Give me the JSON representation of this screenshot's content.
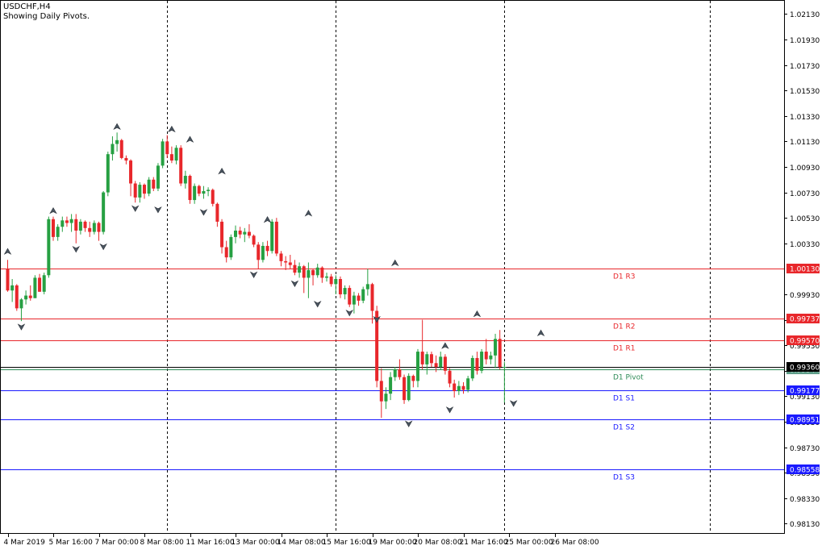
{
  "header": {
    "symbol_label": "USDCHF,H4",
    "indicator_label": "Showing Daily Pivots."
  },
  "colors": {
    "bull": "#26a042",
    "bear": "#e8272b",
    "resistance": "#e8272b",
    "support": "#1a1aff",
    "pivot": "#2e8b57",
    "grid": "#000000"
  },
  "chart_data": {
    "type": "candlestick",
    "title": "USDCHF,H4",
    "subtitle": "Showing Daily Pivots.",
    "xlabel": "",
    "ylabel": "",
    "ylim": [
      0.9805,
      1.0224
    ],
    "y_ticks": [
      "1.02130",
      "1.01930",
      "1.01730",
      "1.01530",
      "1.01330",
      "1.01130",
      "1.00930",
      "1.00730",
      "1.00530",
      "1.00330",
      "0.99930",
      "0.99730",
      "0.99530",
      "0.99330",
      "0.99130",
      "0.98930",
      "0.98730",
      "0.98530",
      "0.98330",
      "0.98130"
    ],
    "x_labels": [
      {
        "label": "4 Mar 2019",
        "index": 0
      },
      {
        "label": "5 Mar 16:00",
        "index": 10
      },
      {
        "label": "7 Mar 00:00",
        "index": 20
      },
      {
        "label": "8 Mar 08:00",
        "index": 30
      },
      {
        "label": "11 Mar 16:00",
        "index": 40
      },
      {
        "label": "13 Mar 00:00",
        "index": 50
      },
      {
        "label": "14 Mar 08:00",
        "index": 60
      },
      {
        "label": "15 Mar 16:00",
        "index": 70
      },
      {
        "label": "19 Mar 00:00",
        "index": 80
      },
      {
        "label": "20 Mar 08:00",
        "index": 90
      },
      {
        "label": "21 Mar 16:00",
        "index": 100
      },
      {
        "label": "25 Mar 00:00",
        "index": 110
      },
      {
        "label": "26 Mar 08:00",
        "index": 120
      }
    ],
    "day_separators": [
      35,
      72,
      109,
      154
    ],
    "pivot_levels": [
      {
        "name": "D1 R3",
        "value": 1.0013,
        "price_label": "1.00130",
        "kind": "resistance"
      },
      {
        "name": "D1 R2",
        "value": 0.99737,
        "price_label": "0.99737",
        "kind": "resistance"
      },
      {
        "name": "D1 R1",
        "value": 0.9957,
        "price_label": "0.99570",
        "kind": "resistance"
      },
      {
        "name": "D1 Pivot",
        "value": 0.99344,
        "price_label": "0.99344",
        "kind": "pivot"
      },
      {
        "name": "D1 S1",
        "value": 0.99177,
        "price_label": "0.99177",
        "kind": "support"
      },
      {
        "name": "D1 S2",
        "value": 0.98951,
        "price_label": "0.98951",
        "kind": "support"
      },
      {
        "name": "D1 S3",
        "value": 0.98558,
        "price_label": "0.98558",
        "kind": "support"
      }
    ],
    "current_price": {
      "value": 0.9936,
      "price_label": "0.99360"
    },
    "candles": [
      {
        "o": 1.0013,
        "h": 1.002,
        "l": 0.9995,
        "c": 0.9996
      },
      {
        "o": 0.9996,
        "h": 1.0005,
        "l": 0.9987,
        "c": 1.0
      },
      {
        "o": 1.0,
        "h": 1.0001,
        "l": 0.998,
        "c": 0.9982
      },
      {
        "o": 0.9982,
        "h": 0.999,
        "l": 0.9972,
        "c": 0.9989
      },
      {
        "o": 0.9989,
        "h": 0.9996,
        "l": 0.9985,
        "c": 0.9992
      },
      {
        "o": 0.9992,
        "h": 1.0,
        "l": 0.9988,
        "c": 0.999
      },
      {
        "o": 0.999,
        "h": 1.0008,
        "l": 0.999,
        "c": 1.0006
      },
      {
        "o": 1.0006,
        "h": 1.0009,
        "l": 0.9995,
        "c": 0.9995
      },
      {
        "o": 0.9995,
        "h": 1.001,
        "l": 0.9993,
        "c": 1.0008
      },
      {
        "o": 1.0008,
        "h": 1.0054,
        "l": 1.0006,
        "c": 1.0052
      },
      {
        "o": 1.0052,
        "h": 1.0054,
        "l": 1.0035,
        "c": 1.0038
      },
      {
        "o": 1.0038,
        "h": 1.0048,
        "l": 1.0035,
        "c": 1.0046
      },
      {
        "o": 1.0046,
        "h": 1.0054,
        "l": 1.0042,
        "c": 1.0051
      },
      {
        "o": 1.0051,
        "h": 1.0054,
        "l": 1.0046,
        "c": 1.0049
      },
      {
        "o": 1.0049,
        "h": 1.0056,
        "l": 1.0042,
        "c": 1.0052
      },
      {
        "o": 1.0052,
        "h": 1.0056,
        "l": 1.0033,
        "c": 1.0043
      },
      {
        "o": 1.0043,
        "h": 1.0052,
        "l": 1.004,
        "c": 1.005
      },
      {
        "o": 1.005,
        "h": 1.0051,
        "l": 1.0042,
        "c": 1.0045
      },
      {
        "o": 1.0045,
        "h": 1.005,
        "l": 1.0038,
        "c": 1.0042
      },
      {
        "o": 1.0042,
        "h": 1.0051,
        "l": 1.004,
        "c": 1.0049
      },
      {
        "o": 1.0049,
        "h": 1.005,
        "l": 1.0035,
        "c": 1.0042
      },
      {
        "o": 1.0042,
        "h": 1.0074,
        "l": 1.004,
        "c": 1.0073
      },
      {
        "o": 1.0073,
        "h": 1.0105,
        "l": 1.007,
        "c": 1.0103
      },
      {
        "o": 1.0103,
        "h": 1.0117,
        "l": 1.0098,
        "c": 1.0111
      },
      {
        "o": 1.0111,
        "h": 1.012,
        "l": 1.0105,
        "c": 1.0114
      },
      {
        "o": 1.0114,
        "h": 1.0115,
        "l": 1.0099,
        "c": 1.01
      },
      {
        "o": 1.01,
        "h": 1.0102,
        "l": 1.0095,
        "c": 1.0098
      },
      {
        "o": 1.0098,
        "h": 1.0099,
        "l": 1.007,
        "c": 1.008
      },
      {
        "o": 1.008,
        "h": 1.0082,
        "l": 1.0065,
        "c": 1.0069
      },
      {
        "o": 1.0069,
        "h": 1.0081,
        "l": 1.0065,
        "c": 1.0079
      },
      {
        "o": 1.0079,
        "h": 1.008,
        "l": 1.0068,
        "c": 1.0072
      },
      {
        "o": 1.0072,
        "h": 1.0085,
        "l": 1.007,
        "c": 1.0083
      },
      {
        "o": 1.0083,
        "h": 1.0085,
        "l": 1.0074,
        "c": 1.0076
      },
      {
        "o": 1.0076,
        "h": 1.0096,
        "l": 1.0074,
        "c": 1.0094
      },
      {
        "o": 1.0094,
        "h": 1.0115,
        "l": 1.0092,
        "c": 1.0113
      },
      {
        "o": 1.0113,
        "h": 1.0118,
        "l": 1.01,
        "c": 1.0103
      },
      {
        "o": 1.0103,
        "h": 1.0109,
        "l": 1.0096,
        "c": 1.0098
      },
      {
        "o": 1.0098,
        "h": 1.011,
        "l": 1.0095,
        "c": 1.0108
      },
      {
        "o": 1.0108,
        "h": 1.011,
        "l": 1.0078,
        "c": 1.008
      },
      {
        "o": 1.008,
        "h": 1.009,
        "l": 1.0076,
        "c": 1.0086
      },
      {
        "o": 1.0086,
        "h": 1.0087,
        "l": 1.0064,
        "c": 1.0067
      },
      {
        "o": 1.0067,
        "h": 1.008,
        "l": 1.0064,
        "c": 1.0078
      },
      {
        "o": 1.0078,
        "h": 1.0079,
        "l": 1.007,
        "c": 1.0072
      },
      {
        "o": 1.0072,
        "h": 1.0078,
        "l": 1.0068,
        "c": 1.0074
      },
      {
        "o": 1.0074,
        "h": 1.0077,
        "l": 1.007,
        "c": 1.0075
      },
      {
        "o": 1.0075,
        "h": 1.0076,
        "l": 1.0062,
        "c": 1.0064
      },
      {
        "o": 1.0064,
        "h": 1.0065,
        "l": 1.0046,
        "c": 1.005
      },
      {
        "o": 1.005,
        "h": 1.0052,
        "l": 1.0025,
        "c": 1.003
      },
      {
        "o": 1.003,
        "h": 1.0035,
        "l": 1.0018,
        "c": 1.0022
      },
      {
        "o": 1.0022,
        "h": 1.004,
        "l": 1.002,
        "c": 1.0038
      },
      {
        "o": 1.0038,
        "h": 1.0047,
        "l": 1.0033,
        "c": 1.0043
      },
      {
        "o": 1.0043,
        "h": 1.0046,
        "l": 1.0037,
        "c": 1.004
      },
      {
        "o": 1.004,
        "h": 1.0045,
        "l": 1.0034,
        "c": 1.0042
      },
      {
        "o": 1.0042,
        "h": 1.0048,
        "l": 1.0037,
        "c": 1.0039
      },
      {
        "o": 1.0039,
        "h": 1.004,
        "l": 1.003,
        "c": 1.0032
      },
      {
        "o": 1.0032,
        "h": 1.0034,
        "l": 1.0013,
        "c": 1.002
      },
      {
        "o": 1.002,
        "h": 1.0034,
        "l": 1.0018,
        "c": 1.0031
      },
      {
        "o": 1.0031,
        "h": 1.0035,
        "l": 1.0023,
        "c": 1.0027
      },
      {
        "o": 1.0027,
        "h": 1.0052,
        "l": 1.0025,
        "c": 1.005
      },
      {
        "o": 1.005,
        "h": 1.0053,
        "l": 1.0023,
        "c": 1.0025
      },
      {
        "o": 1.0025,
        "h": 1.0027,
        "l": 1.0015,
        "c": 1.0019
      },
      {
        "o": 1.0019,
        "h": 1.0023,
        "l": 1.0012,
        "c": 1.0018
      },
      {
        "o": 1.0018,
        "h": 1.0024,
        "l": 1.0013,
        "c": 1.0016
      },
      {
        "o": 1.0016,
        "h": 1.002,
        "l": 1.0008,
        "c": 1.001
      },
      {
        "o": 1.001,
        "h": 1.0018,
        "l": 1.0006,
        "c": 1.0015
      },
      {
        "o": 1.0015,
        "h": 1.0016,
        "l": 0.9994,
        "c": 1.0006
      },
      {
        "o": 1.0006,
        "h": 1.0018,
        "l": 0.999,
        "c": 1.0012
      },
      {
        "o": 1.0012,
        "h": 1.0013,
        "l": 1.0,
        "c": 1.0008
      },
      {
        "o": 1.0008,
        "h": 1.0017,
        "l": 1.0006,
        "c": 1.0014
      },
      {
        "o": 1.0014,
        "h": 1.0015,
        "l": 1.0002,
        "c": 1.0006
      },
      {
        "o": 1.0006,
        "h": 1.001,
        "l": 1.0003,
        "c": 1.0007
      },
      {
        "o": 1.0007,
        "h": 1.0009,
        "l": 0.9999,
        "c": 1.0001
      },
      {
        "o": 1.0001,
        "h": 1.0008,
        "l": 0.9993,
        "c": 1.0005
      },
      {
        "o": 1.0005,
        "h": 1.0007,
        "l": 0.999,
        "c": 0.9993
      },
      {
        "o": 0.9993,
        "h": 1.0,
        "l": 0.9989,
        "c": 0.9998
      },
      {
        "o": 0.9998,
        "h": 1.0,
        "l": 0.9983,
        "c": 0.9985
      },
      {
        "o": 0.9985,
        "h": 0.9995,
        "l": 0.9978,
        "c": 0.9992
      },
      {
        "o": 0.9992,
        "h": 0.9994,
        "l": 0.9984,
        "c": 0.9988
      },
      {
        "o": 0.9988,
        "h": 0.9999,
        "l": 0.9986,
        "c": 0.9997
      },
      {
        "o": 0.9997,
        "h": 1.0013,
        "l": 0.9992,
        "c": 1.0001
      },
      {
        "o": 1.0001,
        "h": 1.0002,
        "l": 0.997,
        "c": 0.998
      },
      {
        "o": 0.998,
        "h": 0.9984,
        "l": 0.992,
        "c": 0.9925
      },
      {
        "o": 0.9925,
        "h": 0.9935,
        "l": 0.9896,
        "c": 0.9909
      },
      {
        "o": 0.9909,
        "h": 0.992,
        "l": 0.9903,
        "c": 0.9915
      },
      {
        "o": 0.9915,
        "h": 0.9932,
        "l": 0.991,
        "c": 0.9928
      },
      {
        "o": 0.9928,
        "h": 0.9936,
        "l": 0.9925,
        "c": 0.9934
      },
      {
        "o": 0.9934,
        "h": 0.9942,
        "l": 0.9926,
        "c": 0.9928
      },
      {
        "o": 0.9928,
        "h": 0.993,
        "l": 0.9907,
        "c": 0.991
      },
      {
        "o": 0.991,
        "h": 0.9931,
        "l": 0.9909,
        "c": 0.9929
      },
      {
        "o": 0.9929,
        "h": 0.993,
        "l": 0.992,
        "c": 0.9925
      },
      {
        "o": 0.9925,
        "h": 0.995,
        "l": 0.992,
        "c": 0.9948
      },
      {
        "o": 0.9948,
        "h": 0.9973,
        "l": 0.9934,
        "c": 0.9938
      },
      {
        "o": 0.9938,
        "h": 0.9948,
        "l": 0.993,
        "c": 0.9946
      },
      {
        "o": 0.9946,
        "h": 0.9948,
        "l": 0.9936,
        "c": 0.9939
      },
      {
        "o": 0.9939,
        "h": 0.9945,
        "l": 0.9932,
        "c": 0.9936
      },
      {
        "o": 0.9936,
        "h": 0.9948,
        "l": 0.9934,
        "c": 0.9944
      },
      {
        "o": 0.9944,
        "h": 0.9946,
        "l": 0.993,
        "c": 0.9933
      },
      {
        "o": 0.9933,
        "h": 0.9935,
        "l": 0.992,
        "c": 0.9923
      },
      {
        "o": 0.9923,
        "h": 0.9926,
        "l": 0.9912,
        "c": 0.9917
      },
      {
        "o": 0.9917,
        "h": 0.9925,
        "l": 0.9914,
        "c": 0.9921
      },
      {
        "o": 0.9921,
        "h": 0.9924,
        "l": 0.9915,
        "c": 0.9918
      },
      {
        "o": 0.9918,
        "h": 0.9929,
        "l": 0.9916,
        "c": 0.9927
      },
      {
        "o": 0.9927,
        "h": 0.9945,
        "l": 0.9925,
        "c": 0.9943
      },
      {
        "o": 0.9943,
        "h": 0.9948,
        "l": 0.993,
        "c": 0.9933
      },
      {
        "o": 0.9933,
        "h": 0.995,
        "l": 0.9931,
        "c": 0.9948
      },
      {
        "o": 0.9948,
        "h": 0.9958,
        "l": 0.9938,
        "c": 0.9942
      },
      {
        "o": 0.9942,
        "h": 0.9948,
        "l": 0.9938,
        "c": 0.9945
      },
      {
        "o": 0.9945,
        "h": 0.9962,
        "l": 0.9935,
        "c": 0.9958
      },
      {
        "o": 0.9958,
        "h": 0.9965,
        "l": 0.9934,
        "c": 0.9936
      },
      {
        "o": 0.9936,
        "h": 0.994,
        "l": 0.9908,
        "c": 0.9936
      }
    ],
    "fractal_markers": [
      {
        "index": 0,
        "value": 1.0022,
        "dir": "up"
      },
      {
        "index": 3,
        "value": 0.9972,
        "dir": "down"
      },
      {
        "index": 10,
        "value": 1.0054,
        "dir": "up"
      },
      {
        "index": 15,
        "value": 1.0033,
        "dir": "down"
      },
      {
        "index": 21,
        "value": 1.0035,
        "dir": "down"
      },
      {
        "index": 24,
        "value": 1.012,
        "dir": "up"
      },
      {
        "index": 28,
        "value": 1.0065,
        "dir": "down"
      },
      {
        "index": 33,
        "value": 1.0064,
        "dir": "down"
      },
      {
        "index": 36,
        "value": 1.0118,
        "dir": "up"
      },
      {
        "index": 40,
        "value": 1.011,
        "dir": "up"
      },
      {
        "index": 43,
        "value": 1.0062,
        "dir": "down"
      },
      {
        "index": 47,
        "value": 1.0085,
        "dir": "up"
      },
      {
        "index": 54,
        "value": 1.0013,
        "dir": "down"
      },
      {
        "index": 57,
        "value": 1.0047,
        "dir": "up"
      },
      {
        "index": 63,
        "value": 1.0006,
        "dir": "down"
      },
      {
        "index": 66,
        "value": 1.0052,
        "dir": "up"
      },
      {
        "index": 68,
        "value": 0.999,
        "dir": "down"
      },
      {
        "index": 75,
        "value": 0.9983,
        "dir": "down"
      },
      {
        "index": 81,
        "value": 0.9978,
        "dir": "down"
      },
      {
        "index": 85,
        "value": 1.0013,
        "dir": "up"
      },
      {
        "index": 88,
        "value": 0.9896,
        "dir": "down"
      },
      {
        "index": 96,
        "value": 0.9948,
        "dir": "up"
      },
      {
        "index": 97,
        "value": 0.9907,
        "dir": "down"
      },
      {
        "index": 103,
        "value": 0.9973,
        "dir": "up"
      },
      {
        "index": 111,
        "value": 0.9912,
        "dir": "down"
      },
      {
        "index": 117,
        "value": 0.9958,
        "dir": "up"
      }
    ]
  }
}
